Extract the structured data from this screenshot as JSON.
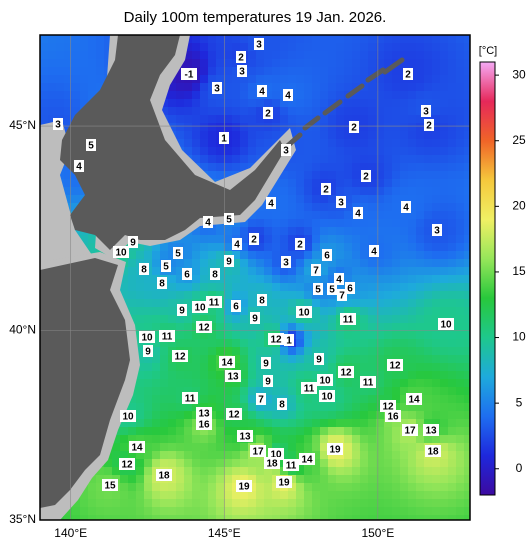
{
  "title": "Daily 100m temperatures 19 Jan. 2026.",
  "map": {
    "xlim": [
      139,
      153
    ],
    "ylim": [
      35,
      47.1
    ],
    "xticks": [
      {
        "value": 140,
        "label": "140°E"
      },
      {
        "value": 145,
        "label": "145°E"
      },
      {
        "value": 150,
        "label": "150°E"
      }
    ],
    "yticks": [
      {
        "value": 35,
        "label": "35°N"
      },
      {
        "value": 40,
        "label": "40°N"
      },
      {
        "value": 45,
        "label": "45°N"
      }
    ],
    "grid": true,
    "labels": [
      3,
      2,
      3,
      -1,
      3,
      4,
      4,
      2,
      2,
      3,
      3,
      2,
      2,
      1,
      5,
      3,
      4,
      2,
      2,
      3,
      4,
      4,
      4,
      5,
      4,
      3,
      2,
      4,
      2,
      9,
      10,
      5,
      6,
      4,
      9,
      3,
      7,
      8,
      6,
      8,
      8,
      4,
      5,
      5,
      5,
      6,
      7,
      8,
      11,
      10,
      9,
      6,
      10,
      9,
      11,
      12,
      10,
      10,
      11,
      12,
      1,
      9,
      12,
      14,
      9,
      9,
      13,
      10,
      12,
      9,
      12,
      11,
      11,
      10,
      11,
      7,
      8,
      13,
      12,
      16,
      12,
      14,
      16,
      10,
      13,
      14,
      17,
      13,
      18,
      17,
      10,
      19,
      14,
      18,
      11,
      12,
      18,
      15,
      19,
      19
    ]
  },
  "colorbar": {
    "unit": "[°C]",
    "lim": [
      -2,
      31
    ],
    "ticks": [
      0,
      5,
      10,
      15,
      20,
      25,
      30
    ],
    "colors": [
      "#3c0aa0",
      "#1e28dc",
      "#1e6ef0",
      "#1eaadc",
      "#1ec88c",
      "#28c83c",
      "#96e65a",
      "#f0f064",
      "#f5c83c",
      "#f06428",
      "#e6285a",
      "#f5aaf5"
    ]
  }
}
